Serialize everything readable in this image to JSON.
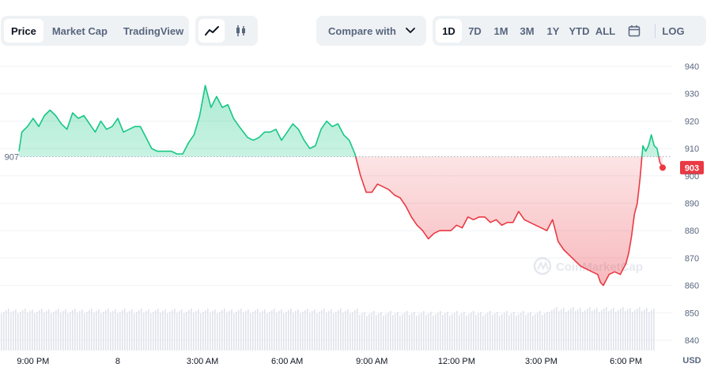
{
  "tabs": [
    {
      "label": "Price",
      "active": true
    },
    {
      "label": "Market Cap",
      "active": false
    },
    {
      "label": "TradingView",
      "active": false
    }
  ],
  "view_icons": [
    "line-chart-icon",
    "candlestick-icon"
  ],
  "compare": {
    "label": "Compare with",
    "icon": "chevron-down-icon"
  },
  "ranges": [
    {
      "label": "1D",
      "active": true
    },
    {
      "label": "7D",
      "active": false
    },
    {
      "label": "1M",
      "active": false
    },
    {
      "label": "3M",
      "active": false
    },
    {
      "label": "1Y",
      "active": false
    },
    {
      "label": "YTD",
      "active": false
    },
    {
      "label": "ALL",
      "active": false
    }
  ],
  "calendar_icon": "calendar-icon",
  "log_label": "LOG",
  "watermark": "CoinMarketCap",
  "colors": {
    "up": "#16c784",
    "down": "#ea3943",
    "grid": "#eff2f5",
    "text": "#58667e"
  },
  "chart_data": {
    "type": "line",
    "baseline": 907,
    "current_price": 903,
    "currency": "USD",
    "ylim": [
      837,
      944
    ],
    "yticks": [
      940,
      930,
      920,
      910,
      900,
      890,
      880,
      870,
      860,
      850,
      840
    ],
    "x_range": [
      -3.5,
      19.3
    ],
    "xticks": [
      {
        "label": "9:00 PM",
        "x": -3
      },
      {
        "label": "8",
        "x": 0
      },
      {
        "label": "3:00 AM",
        "x": 3
      },
      {
        "label": "6:00 AM",
        "x": 6
      },
      {
        "label": "9:00 AM",
        "x": 9
      },
      {
        "label": "12:00 PM",
        "x": 12
      },
      {
        "label": "3:00 PM",
        "x": 15
      },
      {
        "label": "6:00 PM",
        "x": 18
      }
    ],
    "series": [
      {
        "points": [
          [
            -3.5,
            909
          ],
          [
            -3.4,
            916
          ],
          [
            -3.2,
            918
          ],
          [
            -3.0,
            921
          ],
          [
            -2.8,
            918
          ],
          [
            -2.6,
            922
          ],
          [
            -2.4,
            924
          ],
          [
            -2.2,
            922
          ],
          [
            -2.0,
            919
          ],
          [
            -1.8,
            917
          ],
          [
            -1.6,
            923
          ],
          [
            -1.4,
            921
          ],
          [
            -1.2,
            922
          ],
          [
            -1.0,
            919
          ],
          [
            -0.8,
            916
          ],
          [
            -0.6,
            920
          ],
          [
            -0.4,
            917
          ],
          [
            -0.2,
            918
          ],
          [
            0.0,
            921
          ],
          [
            0.2,
            916
          ],
          [
            0.4,
            917
          ],
          [
            0.6,
            918
          ],
          [
            0.8,
            918
          ],
          [
            1.0,
            914
          ],
          [
            1.2,
            910
          ],
          [
            1.4,
            909
          ],
          [
            1.6,
            909
          ],
          [
            1.9,
            909
          ],
          [
            2.1,
            908
          ],
          [
            2.3,
            908
          ],
          [
            2.5,
            912
          ],
          [
            2.7,
            915
          ],
          [
            2.9,
            922
          ],
          [
            3.1,
            933
          ],
          [
            3.3,
            925
          ],
          [
            3.5,
            929
          ],
          [
            3.7,
            925
          ],
          [
            3.9,
            926
          ],
          [
            4.1,
            921
          ],
          [
            4.3,
            918
          ],
          [
            4.6,
            914
          ],
          [
            4.8,
            913
          ],
          [
            5.0,
            914
          ],
          [
            5.2,
            916
          ],
          [
            5.4,
            916
          ],
          [
            5.6,
            917
          ],
          [
            5.8,
            913
          ],
          [
            6.0,
            916
          ],
          [
            6.2,
            919
          ],
          [
            6.4,
            917
          ],
          [
            6.6,
            913
          ],
          [
            6.8,
            910
          ],
          [
            7.0,
            911
          ],
          [
            7.2,
            917
          ],
          [
            7.4,
            920
          ],
          [
            7.6,
            918
          ],
          [
            7.8,
            919
          ],
          [
            8.0,
            915
          ],
          [
            8.2,
            913
          ],
          [
            8.4,
            908
          ],
          [
            8.6,
            900
          ],
          [
            8.8,
            894
          ],
          [
            9.0,
            894
          ],
          [
            9.2,
            897
          ],
          [
            9.4,
            896
          ],
          [
            9.6,
            895
          ],
          [
            9.8,
            893
          ],
          [
            10.0,
            892
          ],
          [
            10.2,
            889
          ],
          [
            10.4,
            885
          ],
          [
            10.6,
            882
          ],
          [
            10.8,
            880
          ],
          [
            11.0,
            877
          ],
          [
            11.2,
            879
          ],
          [
            11.4,
            880
          ],
          [
            11.6,
            880
          ],
          [
            11.8,
            880
          ],
          [
            12.0,
            882
          ],
          [
            12.2,
            881
          ],
          [
            12.4,
            885
          ],
          [
            12.6,
            884
          ],
          [
            12.8,
            885
          ],
          [
            13.0,
            885
          ],
          [
            13.2,
            883
          ],
          [
            13.4,
            884
          ],
          [
            13.6,
            882
          ],
          [
            13.8,
            883
          ],
          [
            14.0,
            883
          ],
          [
            14.2,
            887
          ],
          [
            14.4,
            884
          ],
          [
            14.6,
            883
          ],
          [
            14.8,
            882
          ],
          [
            15.0,
            881
          ],
          [
            15.2,
            880
          ],
          [
            15.4,
            884
          ],
          [
            15.6,
            876
          ],
          [
            15.8,
            873
          ],
          [
            16.0,
            871
          ],
          [
            16.2,
            869
          ],
          [
            16.4,
            867
          ],
          [
            16.6,
            866
          ],
          [
            16.8,
            865
          ],
          [
            17.0,
            864
          ],
          [
            17.1,
            861
          ],
          [
            17.2,
            860
          ],
          [
            17.4,
            864
          ],
          [
            17.6,
            865
          ],
          [
            17.8,
            864
          ],
          [
            18.0,
            868
          ],
          [
            18.1,
            872
          ],
          [
            18.2,
            878
          ],
          [
            18.3,
            886
          ],
          [
            18.4,
            890
          ],
          [
            18.5,
            899
          ],
          [
            18.6,
            911
          ],
          [
            18.7,
            909
          ],
          [
            18.8,
            911
          ],
          [
            18.9,
            915
          ],
          [
            19.0,
            911
          ],
          [
            19.1,
            910
          ],
          [
            19.2,
            905
          ],
          [
            19.3,
            903
          ]
        ]
      }
    ]
  }
}
